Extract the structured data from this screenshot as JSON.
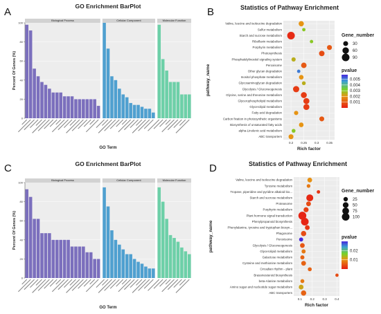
{
  "figure": {
    "panel_labels": [
      "A",
      "B",
      "C",
      "D"
    ]
  },
  "chart_data": [
    {
      "type": "bar",
      "panel": "A",
      "title": "GO Enrichment BarPlot",
      "xlabel": "GO Term",
      "ylabel": "Percent Of Genes (%)",
      "ylim": [
        0,
        100
      ],
      "yticks": [
        0,
        20,
        40,
        60,
        80,
        100
      ],
      "facets": [
        {
          "name": "Biological Process",
          "color": "#7b6fbd",
          "values": [
            98,
            92,
            52,
            44,
            38,
            35,
            31,
            27,
            27,
            27,
            23,
            23,
            23,
            20,
            20,
            20,
            20,
            20,
            20,
            13
          ]
        },
        {
          "name": "Cellular Component",
          "color": "#4fa0d0",
          "values": [
            100,
            73,
            44,
            40,
            31,
            25,
            22,
            16,
            14,
            14,
            12,
            10,
            10,
            6
          ]
        },
        {
          "name": "Molecular Function",
          "color": "#6dd0a8",
          "values": [
            98,
            62,
            50,
            38,
            38,
            38,
            25,
            25,
            25
          ]
        }
      ],
      "categories": []
    },
    {
      "type": "scatter",
      "panel": "B",
      "title": "Statistics of Pathway Enrichment",
      "xlabel": "Rich factor",
      "ylabel": "pathway_name",
      "xlim": [
        0.17,
        0.37
      ],
      "xticks": [
        0.2,
        0.25,
        0.3,
        0.35
      ],
      "categories": [
        "Valine, leucine and isoleucine degradation",
        "Sulfur metabolism",
        "Starch and sucrose metabolism",
        "Riboflavin metabolism",
        "Porphyrin metabolism",
        "Photosynthesis",
        "Phosphatidylinositol signaling system",
        "Peroxisome",
        "Other glycan degradation",
        "Inositol phosphate metabolism",
        "Glycosaminoglycan degradation",
        "Glycolysis / Gluconeogenesis",
        "Glycine, serine and threonine metabolism",
        "Glycerophospholipid metabolism",
        "Glycerolipid metabolism",
        "Fatty acid degradation",
        "Carbon fixation in photosynthetic organisms",
        "Biosynthesis of unsaturated fatty acids",
        "alpha-Linolenic acid metabolism",
        "ABC transporters"
      ],
      "points": [
        {
          "x": 0.24,
          "gene_number": 35,
          "pvalue": 0.002
        },
        {
          "x": 0.25,
          "gene_number": 10,
          "pvalue": 0.003
        },
        {
          "x": 0.2,
          "gene_number": 90,
          "pvalue": 0.0002
        },
        {
          "x": 0.28,
          "gene_number": 10,
          "pvalue": 0.003
        },
        {
          "x": 0.35,
          "gene_number": 30,
          "pvalue": 0.001
        },
        {
          "x": 0.32,
          "gene_number": 40,
          "pvalue": 0.0008
        },
        {
          "x": 0.21,
          "gene_number": 20,
          "pvalue": 0.0025
        },
        {
          "x": 0.25,
          "gene_number": 40,
          "pvalue": 0.001
        },
        {
          "x": 0.23,
          "gene_number": 10,
          "pvalue": 0.005
        },
        {
          "x": 0.24,
          "gene_number": 25,
          "pvalue": 0.002
        },
        {
          "x": 0.25,
          "gene_number": 15,
          "pvalue": 0.0025
        },
        {
          "x": 0.22,
          "gene_number": 55,
          "pvalue": 0.0005
        },
        {
          "x": 0.25,
          "gene_number": 50,
          "pvalue": 0.0005
        },
        {
          "x": 0.26,
          "gene_number": 50,
          "pvalue": 0.0005
        },
        {
          "x": 0.26,
          "gene_number": 50,
          "pvalue": 0.0005
        },
        {
          "x": 0.22,
          "gene_number": 20,
          "pvalue": 0.002
        },
        {
          "x": 0.32,
          "gene_number": 30,
          "pvalue": 0.001
        },
        {
          "x": 0.24,
          "gene_number": 25,
          "pvalue": 0.002
        },
        {
          "x": 0.21,
          "gene_number": 15,
          "pvalue": 0.003
        },
        {
          "x": 0.2,
          "gene_number": 30,
          "pvalue": 0.002
        }
      ],
      "size_legend": {
        "title": "Gene_number",
        "values": [
          30,
          60,
          90
        ]
      },
      "color_legend": {
        "title": "pvalue",
        "ticks": [
          0.005,
          0.004,
          0.003,
          0.002,
          0.001
        ],
        "range": [
          0,
          0.0058
        ]
      }
    },
    {
      "type": "bar",
      "panel": "C",
      "title": "GO Enrichment BarPlot",
      "xlabel": "GO Term",
      "ylabel": "Percent Of Genes (%)",
      "ylim": [
        0,
        100
      ],
      "yticks": [
        0,
        20,
        40,
        60,
        80,
        100
      ],
      "facets": [
        {
          "name": "Biological Process",
          "color": "#7b6fbd",
          "values": [
            93,
            85,
            62,
            62,
            47,
            47,
            47,
            40,
            40,
            40,
            40,
            40,
            33,
            33,
            33,
            33,
            27,
            27,
            20,
            20
          ]
        },
        {
          "name": "Cellular Component",
          "color": "#4fa0d0",
          "values": [
            95,
            75,
            50,
            40,
            35,
            30,
            25,
            25,
            20,
            17,
            15,
            12,
            10,
            10
          ]
        },
        {
          "name": "Molecular Function",
          "color": "#6dd0a8",
          "values": [
            95,
            80,
            62,
            45,
            42,
            38,
            32,
            28,
            25
          ]
        }
      ],
      "categories": []
    },
    {
      "type": "scatter",
      "panel": "D",
      "title": "Statistics of Pathway Enrichment",
      "xlabel": "Rich factor",
      "ylabel": "pathway_name",
      "xlim": [
        0.05,
        0.42
      ],
      "xticks": [
        0.1,
        0.2,
        0.3,
        0.4
      ],
      "categories": [
        "Valine, leucine and isoleucine degradation",
        "Tyrosine metabolism",
        "Tropane, piperidine and pyridine alkaloid bio...",
        "Starch and sucrose metabolism",
        "Proteasome",
        "Porphyrin metabolism",
        "Plant hormone signal transduction",
        "Phenylpropanoid biosynthesis",
        "Phenylalanine, tyrosine and tryptophan biosyn...",
        "Phagosome",
        "Peroxisome",
        "Glycolysis / Gluconeogenesis",
        "Glycerolipid metabolism",
        "Galactose metabolism",
        "Cysteine and methionine metabolism",
        "Circadian rhythm - plant",
        "Brassinosteroid biosynthesis",
        "beta-Alanine metabolism",
        "Amino sugar and nucleotide sugar metabolism",
        "ABC transporters"
      ],
      "points": [
        {
          "x": 0.18,
          "gene_number": 30,
          "pvalue": 0.01
        },
        {
          "x": 0.17,
          "gene_number": 15,
          "pvalue": 0.008
        },
        {
          "x": 0.25,
          "gene_number": 12,
          "pvalue": 0.002
        },
        {
          "x": 0.18,
          "gene_number": 80,
          "pvalue": 0.001
        },
        {
          "x": 0.17,
          "gene_number": 30,
          "pvalue": 0.004
        },
        {
          "x": 0.15,
          "gene_number": 35,
          "pvalue": 0.003
        },
        {
          "x": 0.12,
          "gene_number": 110,
          "pvalue": 0.0005
        },
        {
          "x": 0.14,
          "gene_number": 100,
          "pvalue": 0.0005
        },
        {
          "x": 0.16,
          "gene_number": 30,
          "pvalue": 0.002
        },
        {
          "x": 0.13,
          "gene_number": 40,
          "pvalue": 0.004
        },
        {
          "x": 0.11,
          "gene_number": 20,
          "pvalue": 0.03
        },
        {
          "x": 0.12,
          "gene_number": 30,
          "pvalue": 0.005
        },
        {
          "x": 0.13,
          "gene_number": 20,
          "pvalue": 0.008
        },
        {
          "x": 0.12,
          "gene_number": 20,
          "pvalue": 0.006
        },
        {
          "x": 0.13,
          "gene_number": 30,
          "pvalue": 0.006
        },
        {
          "x": 0.18,
          "gene_number": 18,
          "pvalue": 0.006
        },
        {
          "x": 0.4,
          "gene_number": 10,
          "pvalue": 0.004
        },
        {
          "x": 0.12,
          "gene_number": 18,
          "pvalue": 0.008
        },
        {
          "x": 0.11,
          "gene_number": 30,
          "pvalue": 0.012
        },
        {
          "x": 0.13,
          "gene_number": 40,
          "pvalue": 0.006
        }
      ],
      "size_legend": {
        "title": "Gene_number",
        "values": [
          25,
          50,
          75,
          100
        ]
      },
      "color_legend": {
        "title": "pvalue",
        "ticks": [
          0.02,
          0.01
        ],
        "range": [
          0,
          0.03
        ]
      }
    }
  ]
}
